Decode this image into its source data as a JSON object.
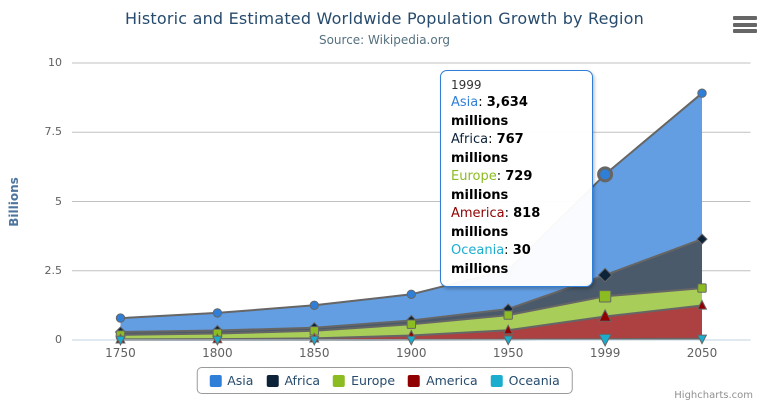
{
  "chart": {
    "title": "Historic and Estimated Worldwide Population Growth by Region",
    "subtitle": "Source: Wikipedia.org",
    "credits": "Highcharts.com"
  },
  "chart_data": {
    "type": "area",
    "stacking": "normal",
    "title": "Historic and Estimated Worldwide Population Growth by Region",
    "subtitle": "Source: Wikipedia.org",
    "categories": [
      "1750",
      "1800",
      "1850",
      "1900",
      "1950",
      "1999",
      "2050"
    ],
    "unit": "millions",
    "xlabel": "",
    "ylabel": "Billions",
    "ylim": [
      0,
      10
    ],
    "yticks": [
      0,
      2.5,
      5,
      7.5,
      10
    ],
    "grid": true,
    "legend_position": "bottom",
    "series": [
      {
        "name": "Asia",
        "color": "#2f7ed8",
        "fill": "#639ee2",
        "marker": "circle",
        "values": [
          502,
          635,
          809,
          947,
          1402,
          3634,
          5268
        ]
      },
      {
        "name": "Africa",
        "color": "#0d233a",
        "fill": "#4a5a6b",
        "marker": "diamond",
        "values": [
          106,
          107,
          111,
          133,
          221,
          767,
          1766
        ]
      },
      {
        "name": "Europe",
        "color": "#8bbc21",
        "fill": "#a8cd59",
        "marker": "square",
        "values": [
          163,
          203,
          276,
          408,
          547,
          729,
          628
        ]
      },
      {
        "name": "America",
        "color": "#910000",
        "fill": "#ad4040",
        "marker": "triangle",
        "values": [
          18,
          31,
          54,
          156,
          339,
          818,
          1201
        ]
      },
      {
        "name": "Oceania",
        "color": "#1aadce",
        "fill": "#53c2da",
        "marker": "triangle-down",
        "values": [
          2,
          2,
          2,
          6,
          13,
          30,
          46
        ]
      }
    ]
  },
  "tooltip": {
    "header": "1999",
    "separator": ": ",
    "hover_category_index": 5,
    "border_color": "#2f7ed8",
    "rows": [
      {
        "name": "Asia",
        "value": "3,634 millions"
      },
      {
        "name": "Africa",
        "value": "767 millions"
      },
      {
        "name": "Europe",
        "value": "729 millions"
      },
      {
        "name": "America",
        "value": "818 millions"
      },
      {
        "name": "Oceania",
        "value": "30 millions"
      }
    ]
  },
  "icons": {
    "export_menu": "hamburger-icon"
  },
  "colors": {
    "series_outline": "#666666",
    "grid": "#c0c0c0",
    "axis_line": "#c0d0e0",
    "title_text": "#274b6d",
    "subtitle_text": "#55707f",
    "axis_title_text": "#4d759e",
    "tick_label_text": "#606060",
    "legend_text": "#274b6d",
    "credits_text": "#909090"
  }
}
